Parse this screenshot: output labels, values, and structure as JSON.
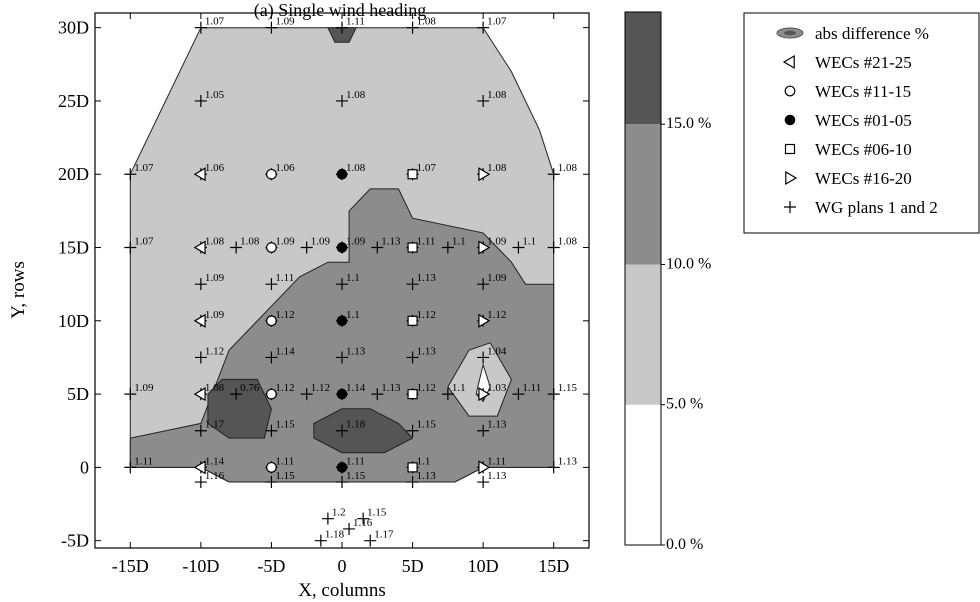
{
  "chart_data": {
    "type": "contour",
    "title": "(a) Single wind heading",
    "xlabel": "X, columns",
    "ylabel": "Y, rows",
    "xlim": [
      -17.5,
      17.5
    ],
    "ylim": [
      -5.5,
      31
    ],
    "x_ticks": [
      {
        "v": -15,
        "label": "-15D"
      },
      {
        "v": -10,
        "label": "-10D"
      },
      {
        "v": -5,
        "label": "-5D"
      },
      {
        "v": 0,
        "label": "0"
      },
      {
        "v": 5,
        "label": "5D"
      },
      {
        "v": 10,
        "label": "10D"
      },
      {
        "v": 15,
        "label": "15D"
      }
    ],
    "y_ticks": [
      {
        "v": -5,
        "label": "-5D"
      },
      {
        "v": 0,
        "label": "0"
      },
      {
        "v": 5,
        "label": "5D"
      },
      {
        "v": 10,
        "label": "10D"
      },
      {
        "v": 15,
        "label": "15D"
      },
      {
        "v": 20,
        "label": "20D"
      },
      {
        "v": 25,
        "label": "25D"
      },
      {
        "v": 30,
        "label": "30D"
      }
    ],
    "colorbar": {
      "bands": [
        {
          "from": 0,
          "to": 5,
          "color": "#ffffff"
        },
        {
          "from": 5,
          "to": 10,
          "color": "#c8c8c8"
        },
        {
          "from": 10,
          "to": 15,
          "color": "#8c8c8c"
        },
        {
          "from": 15,
          "to": 19,
          "color": "#555555"
        }
      ],
      "labels": [
        {
          "v": 0,
          "label": "0.0 %"
        },
        {
          "v": 5,
          "label": "5.0 %"
        },
        {
          "v": 10,
          "label": "10.0 %"
        },
        {
          "v": 15,
          "label": "15.0 %"
        }
      ]
    },
    "contour_regions": [
      {
        "level": "5-10%",
        "color": "#c8c8c8",
        "points": [
          [
            -15,
            20
          ],
          [
            -13,
            24
          ],
          [
            -10,
            30
          ],
          [
            10,
            30
          ],
          [
            12,
            27
          ],
          [
            14,
            23
          ],
          [
            15,
            20
          ],
          [
            15,
            0
          ],
          [
            10,
            0
          ],
          [
            8,
            -1
          ],
          [
            -8,
            -1
          ],
          [
            -10,
            0
          ],
          [
            -15,
            0
          ]
        ]
      },
      {
        "level": "10-15%",
        "color": "#8c8c8c",
        "points": [
          [
            -15,
            0
          ],
          [
            -15,
            2
          ],
          [
            -10,
            3
          ],
          [
            -8,
            8
          ],
          [
            -5,
            11
          ],
          [
            -3,
            13
          ],
          [
            -1,
            14
          ],
          [
            0.5,
            14
          ],
          [
            0.5,
            16
          ],
          [
            0.5,
            17.5
          ],
          [
            2,
            19
          ],
          [
            4,
            19
          ],
          [
            5,
            17
          ],
          [
            10,
            16
          ],
          [
            11,
            15
          ],
          [
            12,
            14
          ],
          [
            13,
            12.5
          ],
          [
            15,
            12.5
          ],
          [
            15,
            0
          ],
          [
            10,
            0
          ],
          [
            8,
            -1
          ],
          [
            -8,
            -1
          ],
          [
            -10,
            0
          ]
        ]
      },
      {
        "level": "15%+",
        "color": "#555555",
        "points": [
          [
            -8.5,
            6
          ],
          [
            -6,
            6
          ],
          [
            -5,
            4
          ],
          [
            -5.5,
            2
          ],
          [
            -8,
            2
          ],
          [
            -9.5,
            3
          ],
          [
            -9.5,
            5
          ]
        ]
      },
      {
        "level": "15%+",
        "color": "#555555",
        "points": [
          [
            -2,
            2
          ],
          [
            0,
            1
          ],
          [
            3,
            1
          ],
          [
            5,
            2
          ],
          [
            4,
            3
          ],
          [
            2,
            4
          ],
          [
            0,
            4
          ],
          [
            -2,
            3
          ]
        ]
      },
      {
        "level": "15%+",
        "color": "#555555",
        "points": [
          [
            -1,
            30
          ],
          [
            1,
            30
          ],
          [
            0.5,
            29
          ],
          [
            -0.5,
            29
          ]
        ]
      },
      {
        "level": "5-10%",
        "color": "#c8c8c8",
        "points": [
          [
            7.5,
            5.5
          ],
          [
            9,
            8
          ],
          [
            10.5,
            8.5
          ],
          [
            12,
            6
          ],
          [
            11,
            3.5
          ],
          [
            9,
            3.5
          ]
        ]
      },
      {
        "level": "0-5%",
        "color": "#ffffff",
        "points": [
          [
            9.5,
            5
          ],
          [
            10,
            7
          ],
          [
            10.5,
            5.5
          ],
          [
            10,
            4.5
          ]
        ]
      }
    ],
    "points": [
      {
        "x": -10,
        "y": 30,
        "label": "1.07"
      },
      {
        "x": -5,
        "y": 30,
        "label": "1.09"
      },
      {
        "x": 0,
        "y": 30,
        "label": "1.11"
      },
      {
        "x": 5,
        "y": 30,
        "label": "1.08"
      },
      {
        "x": 10,
        "y": 30,
        "label": "1.07"
      },
      {
        "x": -10,
        "y": 25,
        "label": "1.05"
      },
      {
        "x": 0,
        "y": 25,
        "label": "1.08"
      },
      {
        "x": 10,
        "y": 25,
        "label": "1.08"
      },
      {
        "x": -15,
        "y": 20,
        "label": "1.07"
      },
      {
        "x": -10,
        "y": 20,
        "label": "1.06"
      },
      {
        "x": -5,
        "y": 20,
        "label": "1.06"
      },
      {
        "x": 0,
        "y": 20,
        "label": "1.08"
      },
      {
        "x": 5,
        "y": 20,
        "label": "1.07"
      },
      {
        "x": 10,
        "y": 20,
        "label": "1.08"
      },
      {
        "x": 15,
        "y": 20,
        "label": "1.08"
      },
      {
        "x": -15,
        "y": 15,
        "label": "1.07"
      },
      {
        "x": -10,
        "y": 15,
        "label": "1.08"
      },
      {
        "x": -7.5,
        "y": 15,
        "label": "1.08"
      },
      {
        "x": -5,
        "y": 15,
        "label": "1.09"
      },
      {
        "x": -2.5,
        "y": 15,
        "label": "1.09"
      },
      {
        "x": 0,
        "y": 15,
        "label": "1.09"
      },
      {
        "x": 2.5,
        "y": 15,
        "label": "1.13"
      },
      {
        "x": 5,
        "y": 15,
        "label": "1.11"
      },
      {
        "x": 7.5,
        "y": 15,
        "label": "1.1"
      },
      {
        "x": 10,
        "y": 15,
        "label": "1.09"
      },
      {
        "x": 12.5,
        "y": 15,
        "label": "1.1"
      },
      {
        "x": 15,
        "y": 15,
        "label": "1.08"
      },
      {
        "x": -10,
        "y": 12.5,
        "label": "1.09"
      },
      {
        "x": -5,
        "y": 12.5,
        "label": "1.11"
      },
      {
        "x": 0,
        "y": 12.5,
        "label": "1.1"
      },
      {
        "x": 5,
        "y": 12.5,
        "label": "1.13"
      },
      {
        "x": 10,
        "y": 12.5,
        "label": "1.09"
      },
      {
        "x": -10,
        "y": 10,
        "label": "1.09"
      },
      {
        "x": -5,
        "y": 10,
        "label": "1.12"
      },
      {
        "x": 0,
        "y": 10,
        "label": "1.1"
      },
      {
        "x": 5,
        "y": 10,
        "label": "1.12"
      },
      {
        "x": 10,
        "y": 10,
        "label": "1.12"
      },
      {
        "x": -10,
        "y": 7.5,
        "label": "1.12"
      },
      {
        "x": -5,
        "y": 7.5,
        "label": "1.14"
      },
      {
        "x": 0,
        "y": 7.5,
        "label": "1.13"
      },
      {
        "x": 5,
        "y": 7.5,
        "label": "1.13"
      },
      {
        "x": 10,
        "y": 7.5,
        "label": "1.04"
      },
      {
        "x": -15,
        "y": 5,
        "label": "1.09"
      },
      {
        "x": -10,
        "y": 5,
        "label": "1.08"
      },
      {
        "x": -7.5,
        "y": 5,
        "label": "0.76"
      },
      {
        "x": -5,
        "y": 5,
        "label": "1.12"
      },
      {
        "x": -2.5,
        "y": 5,
        "label": "1.12"
      },
      {
        "x": 0,
        "y": 5,
        "label": "1.14"
      },
      {
        "x": 2.5,
        "y": 5,
        "label": "1.13"
      },
      {
        "x": 5,
        "y": 5,
        "label": "1.12"
      },
      {
        "x": 7.5,
        "y": 5,
        "label": "1.1"
      },
      {
        "x": 10,
        "y": 5,
        "label": "1.03"
      },
      {
        "x": 12.5,
        "y": 5,
        "label": "1.11"
      },
      {
        "x": 15,
        "y": 5,
        "label": "1.15"
      },
      {
        "x": -10,
        "y": 2.5,
        "label": "1.17"
      },
      {
        "x": -5,
        "y": 2.5,
        "label": "1.15"
      },
      {
        "x": 0,
        "y": 2.5,
        "label": "1.18"
      },
      {
        "x": 5,
        "y": 2.5,
        "label": "1.15"
      },
      {
        "x": 10,
        "y": 2.5,
        "label": "1.13"
      },
      {
        "x": -15,
        "y": 0,
        "label": "1.11"
      },
      {
        "x": -10,
        "y": 0,
        "label": "1.14"
      },
      {
        "x": -5,
        "y": 0,
        "label": "1.11"
      },
      {
        "x": 0,
        "y": 0,
        "label": "1.11"
      },
      {
        "x": 5,
        "y": 0,
        "label": "1.1"
      },
      {
        "x": 10,
        "y": 0,
        "label": "1.11"
      },
      {
        "x": 15,
        "y": 0,
        "label": "1.13"
      },
      {
        "x": -10,
        "y": -1,
        "label": "1.16"
      },
      {
        "x": -5,
        "y": -1,
        "label": "1.15"
      },
      {
        "x": 0,
        "y": -1,
        "label": "1.15"
      },
      {
        "x": 5,
        "y": -1,
        "label": "1.13"
      },
      {
        "x": 10,
        "y": -1,
        "label": "1.13"
      },
      {
        "x": -1,
        "y": -3.5,
        "label": "1.2"
      },
      {
        "x": 1.5,
        "y": -3.5,
        "label": "1.15"
      },
      {
        "x": 0.5,
        "y": -4.2,
        "label": "1.16"
      },
      {
        "x": -1.5,
        "y": -5,
        "label": "1.18"
      },
      {
        "x": 2,
        "y": -5,
        "label": "1.17"
      }
    ],
    "markers": [
      {
        "series": "WECs #21-25",
        "symbol": "tri-left",
        "x": -10,
        "y": 20
      },
      {
        "series": "WECs #21-25",
        "symbol": "tri-left",
        "x": -10,
        "y": 15
      },
      {
        "series": "WECs #21-25",
        "symbol": "tri-left",
        "x": -10,
        "y": 10
      },
      {
        "series": "WECs #21-25",
        "symbol": "tri-left",
        "x": -10,
        "y": 5
      },
      {
        "series": "WECs #21-25",
        "symbol": "tri-left",
        "x": -10,
        "y": 0
      },
      {
        "series": "WECs #11-15",
        "symbol": "circle-open",
        "x": -5,
        "y": 20
      },
      {
        "series": "WECs #11-15",
        "symbol": "circle-open",
        "x": -5,
        "y": 15
      },
      {
        "series": "WECs #11-15",
        "symbol": "circle-open",
        "x": -5,
        "y": 10
      },
      {
        "series": "WECs #11-15",
        "symbol": "circle-open",
        "x": -5,
        "y": 5
      },
      {
        "series": "WECs #11-15",
        "symbol": "circle-open",
        "x": -5,
        "y": 0
      },
      {
        "series": "WECs #01-05",
        "symbol": "circle-filled",
        "x": 0,
        "y": 20
      },
      {
        "series": "WECs #01-05",
        "symbol": "circle-filled",
        "x": 0,
        "y": 15
      },
      {
        "series": "WECs #01-05",
        "symbol": "circle-filled",
        "x": 0,
        "y": 10
      },
      {
        "series": "WECs #01-05",
        "symbol": "circle-filled",
        "x": 0,
        "y": 5
      },
      {
        "series": "WECs #01-05",
        "symbol": "circle-filled",
        "x": 0,
        "y": 0
      },
      {
        "series": "WECs #06-10",
        "symbol": "square-open",
        "x": 5,
        "y": 20
      },
      {
        "series": "WECs #06-10",
        "symbol": "square-open",
        "x": 5,
        "y": 15
      },
      {
        "series": "WECs #06-10",
        "symbol": "square-open",
        "x": 5,
        "y": 10
      },
      {
        "series": "WECs #06-10",
        "symbol": "square-open",
        "x": 5,
        "y": 5
      },
      {
        "series": "WECs #06-10",
        "symbol": "square-open",
        "x": 5,
        "y": 0
      },
      {
        "series": "WECs #16-20",
        "symbol": "tri-right",
        "x": 10,
        "y": 20
      },
      {
        "series": "WECs #16-20",
        "symbol": "tri-right",
        "x": 10,
        "y": 15
      },
      {
        "series": "WECs #16-20",
        "symbol": "tri-right",
        "x": 10,
        "y": 10
      },
      {
        "series": "WECs #16-20",
        "symbol": "tri-right",
        "x": 10,
        "y": 5
      },
      {
        "series": "WECs #16-20",
        "symbol": "tri-right",
        "x": 10,
        "y": 0
      }
    ],
    "legend": {
      "placement": "right",
      "items": [
        {
          "symbol": "contour",
          "label": "abs difference %"
        },
        {
          "symbol": "tri-left",
          "label": "WECs #21-25"
        },
        {
          "symbol": "circle-open",
          "label": "WECs #11-15"
        },
        {
          "symbol": "circle-filled",
          "label": "WECs #01-05"
        },
        {
          "symbol": "square-open",
          "label": "WECs #06-10"
        },
        {
          "symbol": "tri-right",
          "label": "WECs #16-20"
        },
        {
          "symbol": "plus",
          "label": "WG plans 1 and 2"
        }
      ]
    }
  }
}
